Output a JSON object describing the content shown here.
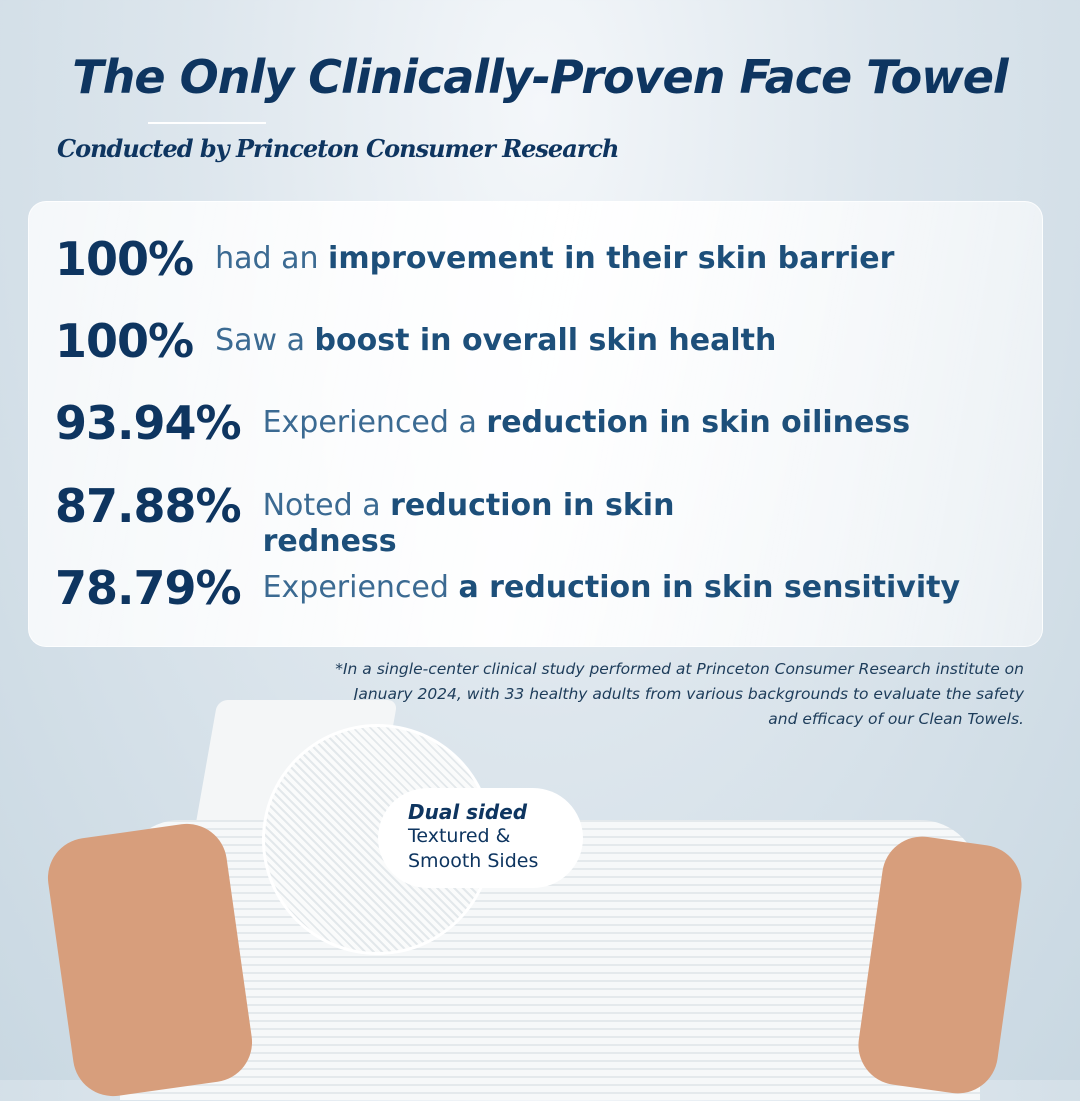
{
  "header": {
    "title": "The Only Clinically-Proven Face Towel",
    "subtitle": "Conducted by Princeton Consumer Research"
  },
  "stats": [
    {
      "percent": "100%",
      "pre": "had an ",
      "bold": "improvement in their skin barrier",
      "post": ""
    },
    {
      "percent": "100%",
      "pre": "Saw a ",
      "bold": "boost in overall skin health",
      "post": ""
    },
    {
      "percent": "93.94%",
      "pre": "Experienced a ",
      "bold": "reduction in skin oiliness",
      "post": ""
    },
    {
      "percent": "87.88%",
      "pre": "Noted a ",
      "bold": "reduction in skin redness",
      "post": ""
    },
    {
      "percent": "78.79%",
      "pre": "Experienced ",
      "bold": "a reduction in skin sensitivity",
      "post": ""
    }
  ],
  "footnote": "*In a single-center clinical study performed at Princeton Consumer Research institute on January 2024, with 33 healthy adults from various backgrounds to evaluate the safety and efficacy of our Clean Towels.",
  "callout": {
    "heading": "Dual sided",
    "line1": "Textured &",
    "line2_bold": "Smooth",
    "line2_rest": " Sides"
  },
  "colors": {
    "navy": "#0e3560",
    "text_blue": "#3b6a92",
    "background": "#c9d8e2"
  }
}
